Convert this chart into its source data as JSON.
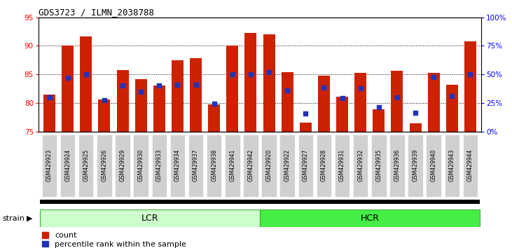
{
  "title": "GDS3723 / ILMN_2038788",
  "categories": [
    "GSM429923",
    "GSM429924",
    "GSM429925",
    "GSM429926",
    "GSM429929",
    "GSM429930",
    "GSM429933",
    "GSM429934",
    "GSM429937",
    "GSM429938",
    "GSM429941",
    "GSM429942",
    "GSM429920",
    "GSM429922",
    "GSM429927",
    "GSM429928",
    "GSM429931",
    "GSM429932",
    "GSM429935",
    "GSM429936",
    "GSM429939",
    "GSM429940",
    "GSM429943",
    "GSM429944"
  ],
  "red_values": [
    81.5,
    90.0,
    91.7,
    80.6,
    85.8,
    84.2,
    83.1,
    87.5,
    87.8,
    79.7,
    90.0,
    92.3,
    92.0,
    85.4,
    76.6,
    84.8,
    81.1,
    85.3,
    78.9,
    85.7,
    76.4,
    85.3,
    83.2,
    90.8
  ],
  "blue_values": [
    81.0,
    84.4,
    85.0,
    80.5,
    83.0,
    82.0,
    83.0,
    83.2,
    83.2,
    79.9,
    85.0,
    85.0,
    85.4,
    82.2,
    78.2,
    82.7,
    80.8,
    82.6,
    79.2,
    81.0,
    78.3,
    84.5,
    81.2,
    85.0
  ],
  "ylim": [
    75,
    95
  ],
  "yticks": [
    75,
    80,
    85,
    90,
    95
  ],
  "right_yticks_pct": [
    0,
    25,
    50,
    75,
    100
  ],
  "right_ylabels": [
    "0%",
    "25%",
    "50%",
    "75%",
    "100%"
  ],
  "lcr_count": 12,
  "hcr_count": 12,
  "bar_color": "#cc2200",
  "dot_color": "#2233bb",
  "lcr_color": "#ccffcc",
  "hcr_color": "#44ee44",
  "strain_label": "strain",
  "lcr_label": "LCR",
  "hcr_label": "HCR",
  "legend_count": "count",
  "legend_pct": "percentile rank within the sample",
  "bar_width": 0.65,
  "dot_size": 18,
  "tick_bg": "#d0d0d0"
}
